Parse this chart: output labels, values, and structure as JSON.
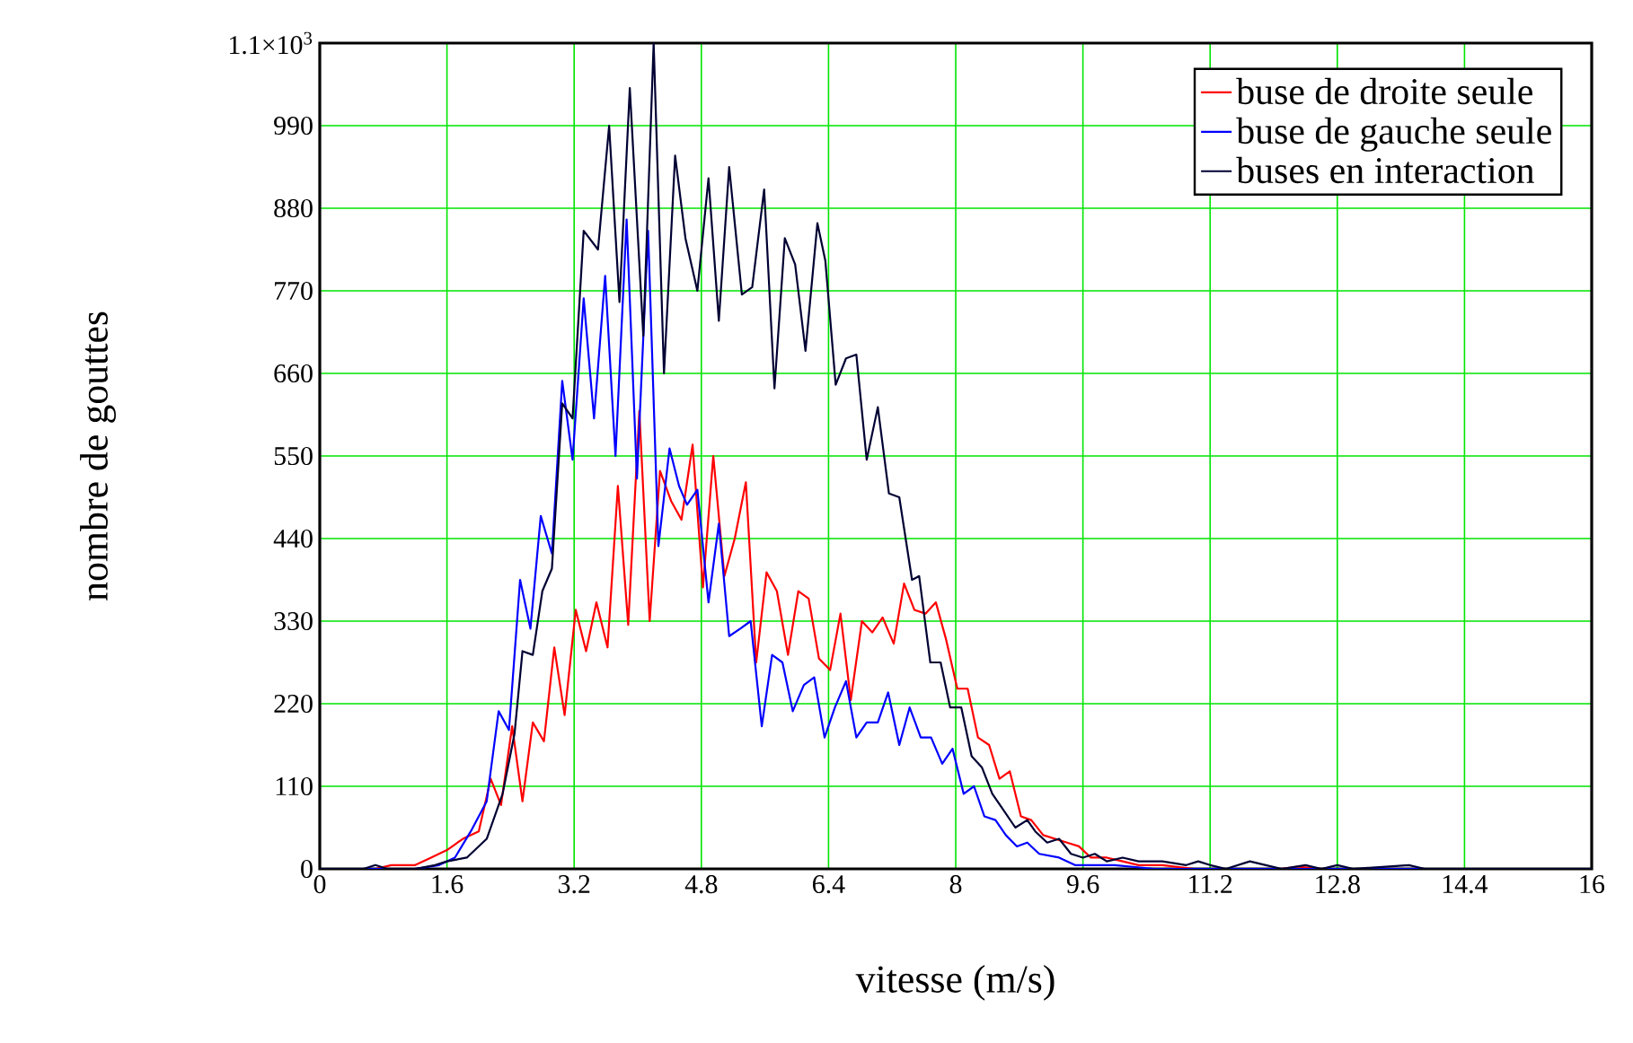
{
  "chart_data": {
    "type": "line",
    "xlabel": "vitesse (m/s)",
    "ylabel": "nombre de gouttes",
    "xlim": [
      0,
      16
    ],
    "ylim": [
      0,
      1100
    ],
    "xticks": [
      0,
      1.6,
      3.2,
      4.8,
      6.4,
      8,
      9.6,
      11.2,
      12.8,
      14.4,
      16
    ],
    "yticks": [
      0,
      110,
      220,
      330,
      440,
      550,
      660,
      770,
      880,
      990,
      {
        "value": 1100,
        "label": "1.1×10$^{3}$"
      }
    ],
    "grid": true,
    "legend": "top right",
    "marker": "none",
    "line_style": "solid",
    "series": [
      {
        "name": "buse de droite seule",
        "color": "#ff0000",
        "x": [
          0,
          0.7,
          0.9,
          1.2,
          1.4,
          1.6,
          1.8,
          2.0,
          2.15,
          2.28,
          2.42,
          2.55,
          2.68,
          2.82,
          2.95,
          3.08,
          3.22,
          3.35,
          3.48,
          3.62,
          3.75,
          3.88,
          4.02,
          4.15,
          4.28,
          4.42,
          4.55,
          4.69,
          4.82,
          4.95,
          5.09,
          5.22,
          5.36,
          5.49,
          5.62,
          5.75,
          5.89,
          6.02,
          6.15,
          6.28,
          6.42,
          6.55,
          6.68,
          6.82,
          6.95,
          7.08,
          7.22,
          7.35,
          7.48,
          7.62,
          7.75,
          7.88,
          8.02,
          8.15,
          8.28,
          8.42,
          8.55,
          8.68,
          8.82,
          8.95,
          9.1,
          9.25,
          9.4,
          9.55,
          9.7,
          9.9,
          10.1,
          10.3,
          10.6,
          11.0,
          12.1,
          12.3,
          12.6,
          16
        ],
        "values": [
          0,
          0,
          5,
          5,
          15,
          25,
          40,
          50,
          120,
          85,
          190,
          90,
          195,
          170,
          295,
          205,
          345,
          290,
          355,
          295,
          510,
          325,
          610,
          330,
          530,
          490,
          465,
          565,
          375,
          550,
          390,
          440,
          515,
          275,
          395,
          370,
          285,
          370,
          360,
          280,
          265,
          340,
          225,
          330,
          315,
          335,
          300,
          380,
          345,
          340,
          355,
          305,
          240,
          240,
          175,
          165,
          120,
          130,
          70,
          65,
          45,
          40,
          35,
          30,
          15,
          15,
          10,
          5,
          5,
          0,
          0,
          3,
          0,
          0
        ]
      },
      {
        "name": "buse de gauche seule",
        "color": "#0000ff",
        "x": [
          0,
          1.2,
          1.5,
          1.7,
          1.9,
          2.1,
          2.25,
          2.38,
          2.52,
          2.65,
          2.78,
          2.92,
          3.05,
          3.18,
          3.32,
          3.45,
          3.59,
          3.72,
          3.86,
          3.99,
          4.13,
          4.26,
          4.4,
          4.52,
          4.62,
          4.75,
          4.89,
          5.02,
          5.15,
          5.29,
          5.42,
          5.56,
          5.69,
          5.82,
          5.95,
          6.09,
          6.22,
          6.35,
          6.48,
          6.62,
          6.75,
          6.88,
          7.02,
          7.15,
          7.29,
          7.42,
          7.56,
          7.69,
          7.83,
          7.96,
          8.1,
          8.23,
          8.36,
          8.5,
          8.63,
          8.77,
          8.9,
          9.05,
          9.3,
          9.5,
          10.0,
          10.5,
          16
        ],
        "values": [
          0,
          0,
          5,
          15,
          50,
          90,
          210,
          185,
          385,
          320,
          470,
          420,
          650,
          545,
          760,
          600,
          790,
          550,
          865,
          520,
          850,
          430,
          560,
          510,
          485,
          505,
          355,
          460,
          310,
          320,
          330,
          190,
          285,
          275,
          210,
          245,
          255,
          175,
          215,
          250,
          175,
          195,
          195,
          235,
          165,
          215,
          175,
          175,
          140,
          160,
          100,
          110,
          70,
          65,
          45,
          30,
          35,
          20,
          15,
          5,
          5,
          0,
          0
        ]
      },
      {
        "name": "buses en interaction",
        "color": "#000033",
        "x": [
          0,
          0.55,
          0.7,
          0.85,
          1.2,
          1.45,
          1.6,
          1.85,
          2.1,
          2.3,
          2.45,
          2.55,
          2.68,
          2.8,
          2.92,
          3.05,
          3.18,
          3.32,
          3.5,
          3.64,
          3.77,
          3.9,
          4.07,
          4.2,
          4.33,
          4.47,
          4.6,
          4.75,
          4.89,
          5.02,
          5.15,
          5.31,
          5.44,
          5.59,
          5.72,
          5.85,
          5.98,
          6.11,
          6.26,
          6.36,
          6.49,
          6.62,
          6.75,
          6.88,
          7.02,
          7.16,
          7.29,
          7.45,
          7.54,
          7.68,
          7.81,
          7.93,
          8.07,
          8.2,
          8.33,
          8.46,
          8.59,
          8.75,
          8.9,
          9.0,
          9.15,
          9.3,
          9.45,
          9.6,
          9.75,
          9.9,
          10.1,
          10.3,
          10.6,
          10.9,
          11.05,
          11.2,
          11.4,
          11.7,
          11.9,
          12.1,
          12.4,
          12.6,
          12.8,
          13.0,
          13.7,
          13.9,
          16
        ],
        "values": [
          0,
          0,
          5,
          0,
          0,
          5,
          10,
          15,
          40,
          100,
          180,
          290,
          285,
          370,
          400,
          620,
          600,
          850,
          825,
          990,
          755,
          1040,
          710,
          1100,
          660,
          950,
          840,
          770,
          920,
          730,
          935,
          765,
          775,
          905,
          640,
          840,
          805,
          690,
          860,
          810,
          645,
          680,
          685,
          545,
          615,
          500,
          495,
          385,
          390,
          275,
          275,
          215,
          215,
          150,
          135,
          100,
          80,
          55,
          65,
          50,
          35,
          40,
          20,
          15,
          20,
          10,
          15,
          10,
          10,
          5,
          10,
          5,
          0,
          10,
          5,
          0,
          5,
          0,
          5,
          0,
          5,
          0,
          0
        ]
      }
    ]
  }
}
